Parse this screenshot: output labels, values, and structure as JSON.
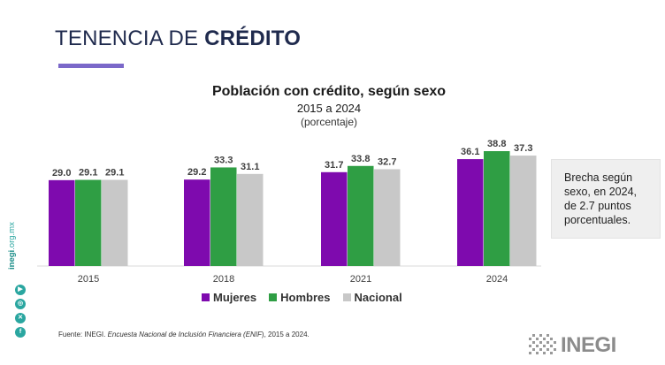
{
  "slide": {
    "title_regular": "TENENCIA DE ",
    "title_bold": "CRÉDITO"
  },
  "chart_title": {
    "main": "Población con crédito, según sexo",
    "sub": "2015 a 2024",
    "unit": "(porcentaje)"
  },
  "colors": {
    "mujeres": "#7e0aae",
    "hombres": "#2f9e44",
    "nacional": "#c8c8c8",
    "title": "#1f2a4d",
    "accent": "#7b68c9",
    "teal": "#2aa6a0"
  },
  "chart_data": {
    "type": "bar",
    "categories": [
      "2015",
      "2018",
      "2021",
      "2024"
    ],
    "series": [
      {
        "name": "Mujeres",
        "values": [
          29.0,
          29.2,
          31.7,
          36.1
        ]
      },
      {
        "name": "Hombres",
        "values": [
          29.1,
          33.3,
          33.8,
          38.8
        ]
      },
      {
        "name": "Nacional",
        "values": [
          29.1,
          31.1,
          32.7,
          37.3
        ]
      }
    ],
    "value_labels": [
      [
        "29.0",
        "29.2",
        "31.7",
        "36.1"
      ],
      [
        "29.1",
        "33.3",
        "33.8",
        "38.8"
      ],
      [
        "29.1",
        "31.1",
        "32.7",
        "37.3"
      ]
    ],
    "title": "Población con crédito, según sexo",
    "subtitle": "2015 a 2024",
    "unit": "(porcentaje)",
    "legend_position": "bottom",
    "grid": false
  },
  "legend": {
    "mujeres": "Mujeres",
    "hombres": "Hombres",
    "nacional": "Nacional"
  },
  "callout": {
    "text_line1": "Brecha según",
    "text_line2": "sexo, en 2024,",
    "text_line3": "de 2.7 puntos",
    "text_line4": "porcentuales."
  },
  "source": {
    "prefix": "Fuente: ",
    "org": "INEGI.",
    "survey": " Encuesta Nacional de Inclusión Financiera (",
    "survey_abbr": "ENIF",
    "suffix": "), 2015 a 2024."
  },
  "sidebar": {
    "url_bold": "inegi",
    "url_rest": ".org.mx",
    "icons": [
      "youtube-icon",
      "instagram-icon",
      "x-icon",
      "facebook-icon"
    ]
  },
  "logo": {
    "text": "INEGI"
  }
}
